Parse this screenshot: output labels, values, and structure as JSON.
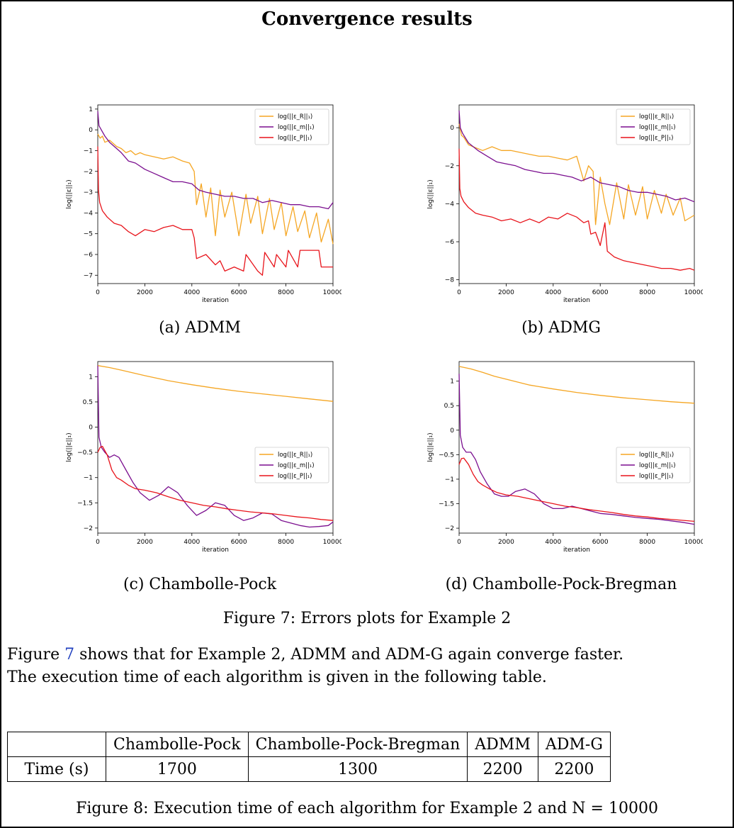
{
  "title": "Convergence results",
  "captions": [
    "(a) ADMM",
    "(b) ADMG",
    "(c) Chambolle-Pock",
    "(d) Chambolle-Pock-Bregman"
  ],
  "figure7_caption": "Figure 7: Errors plots for Example 2",
  "paragraph": {
    "ref": "7",
    "line1_pre": "Figure ",
    "line1_post": " shows that for Example 2, ADMM and ADM-G again converge faster.",
    "line2": "The execution time of each algorithm is given in the following table."
  },
  "table": {
    "headers": [
      "",
      "Chambolle-Pock",
      "Chambolle-Pock-Bregman",
      "ADMM",
      "ADM-G"
    ],
    "row": [
      "Time (s)",
      "1700",
      "1300",
      "2200",
      "2200"
    ]
  },
  "figure8_caption": "Figure 8: Execution time of each algorithm for Example 2 and N = 10000",
  "colors": {
    "orange": "#f5a623",
    "purple": "#7b0f8f",
    "red": "#e8141b"
  },
  "chart_data": [
    {
      "type": "line",
      "xlabel": "iteration",
      "ylabel": "log(||ε||₁)",
      "xlim": [
        0,
        10000
      ],
      "ylim": [
        -7.4,
        1.2
      ],
      "xticks": [
        0,
        2000,
        4000,
        6000,
        8000,
        10000
      ],
      "yticks": [
        1,
        0,
        -1,
        -2,
        -3,
        -4,
        -5,
        -6,
        -7
      ],
      "legend": "top-right",
      "series": [
        {
          "name": "log(||ε_R||₁)",
          "color": "orange",
          "x": [
            0,
            100,
            200,
            300,
            500,
            800,
            1000,
            1200,
            1400,
            1600,
            1800,
            2000,
            2400,
            2800,
            3200,
            3600,
            3900,
            4100,
            4200,
            4400,
            4600,
            4800,
            5000,
            5200,
            5400,
            5700,
            6000,
            6300,
            6500,
            6800,
            7000,
            7300,
            7500,
            7800,
            8000,
            8300,
            8500,
            8800,
            9000,
            9300,
            9500,
            9800,
            10000
          ],
          "y": [
            -0.2,
            -0.4,
            -0.3,
            -0.6,
            -0.5,
            -0.8,
            -0.9,
            -1.1,
            -1.0,
            -1.2,
            -1.1,
            -1.2,
            -1.3,
            -1.4,
            -1.3,
            -1.5,
            -1.6,
            -2.0,
            -3.6,
            -2.6,
            -4.2,
            -2.8,
            -5.1,
            -2.9,
            -4.2,
            -3.0,
            -5.1,
            -3.1,
            -4.5,
            -3.2,
            -5.0,
            -3.3,
            -4.8,
            -3.5,
            -5.1,
            -3.7,
            -4.9,
            -3.9,
            -5.2,
            -4.0,
            -5.4,
            -4.3,
            -5.5
          ]
        },
        {
          "name": "log(||ε_m||₁)",
          "color": "purple",
          "x": [
            0,
            50,
            150,
            300,
            500,
            800,
            1000,
            1300,
            1600,
            2000,
            2400,
            2800,
            3200,
            3600,
            4000,
            4300,
            4600,
            5000,
            5400,
            5800,
            6200,
            6600,
            7000,
            7400,
            7800,
            8200,
            8600,
            9000,
            9400,
            9800,
            10000
          ],
          "y": [
            0.9,
            0.2,
            0.0,
            -0.3,
            -0.6,
            -0.9,
            -1.1,
            -1.5,
            -1.6,
            -1.9,
            -2.1,
            -2.3,
            -2.5,
            -2.5,
            -2.6,
            -2.9,
            -3.0,
            -3.1,
            -3.2,
            -3.2,
            -3.3,
            -3.3,
            -3.5,
            -3.4,
            -3.5,
            -3.6,
            -3.6,
            -3.7,
            -3.7,
            -3.8,
            -3.5
          ]
        },
        {
          "name": "log(||ε_P||₁)",
          "color": "red",
          "x": [
            0,
            30,
            80,
            200,
            400,
            700,
            1000,
            1300,
            1600,
            2000,
            2400,
            2800,
            3200,
            3600,
            4000,
            4100,
            4200,
            4600,
            5000,
            5200,
            5400,
            5800,
            6200,
            6300,
            6800,
            7000,
            7100,
            7500,
            7600,
            8000,
            8100,
            8500,
            8600,
            9000,
            9400,
            9500,
            10000
          ],
          "y": [
            -0.8,
            -2.9,
            -3.5,
            -3.9,
            -4.2,
            -4.5,
            -4.6,
            -4.9,
            -5.1,
            -4.8,
            -4.9,
            -4.7,
            -4.6,
            -4.8,
            -4.8,
            -5.2,
            -6.2,
            -6.0,
            -6.5,
            -6.3,
            -6.8,
            -6.6,
            -6.8,
            -6.0,
            -6.8,
            -7.0,
            -5.9,
            -6.6,
            -6.0,
            -6.6,
            -5.8,
            -6.6,
            -5.8,
            -5.8,
            -5.8,
            -6.6,
            -6.6
          ]
        }
      ]
    },
    {
      "type": "line",
      "xlabel": "iteration",
      "ylabel": "log(||ε||₁)",
      "xlim": [
        0,
        10000
      ],
      "ylim": [
        -8.2,
        1.2
      ],
      "xticks": [
        0,
        2000,
        4000,
        6000,
        8000,
        10000
      ],
      "yticks": [
        0,
        -2,
        -4,
        -6,
        -8
      ],
      "legend": "top-right",
      "series": [
        {
          "name": "log(||ε_R||₁)",
          "color": "orange",
          "x": [
            0,
            100,
            200,
            400,
            600,
            800,
            1000,
            1400,
            1800,
            2200,
            2600,
            3000,
            3400,
            3800,
            4200,
            4600,
            5000,
            5300,
            5500,
            5700,
            5800,
            6000,
            6200,
            6400,
            6700,
            7000,
            7200,
            7500,
            7800,
            8000,
            8300,
            8600,
            8800,
            9100,
            9400,
            9600,
            10000
          ],
          "y": [
            0.2,
            -0.4,
            -0.5,
            -0.9,
            -1.0,
            -1.1,
            -1.2,
            -1.0,
            -1.2,
            -1.2,
            -1.3,
            -1.4,
            -1.5,
            -1.5,
            -1.6,
            -1.7,
            -1.5,
            -2.8,
            -2.0,
            -2.3,
            -5.1,
            -2.6,
            -4.0,
            -5.1,
            -2.9,
            -4.8,
            -3.0,
            -4.6,
            -3.1,
            -4.8,
            -3.3,
            -4.5,
            -3.5,
            -4.6,
            -3.7,
            -4.9,
            -4.6
          ]
        },
        {
          "name": "log(||ε_m||₁)",
          "color": "purple",
          "x": [
            0,
            50,
            150,
            400,
            800,
            1200,
            1600,
            2000,
            2400,
            2800,
            3200,
            3600,
            4000,
            4400,
            4800,
            5200,
            5600,
            6000,
            6400,
            6800,
            7200,
            7600,
            8000,
            8400,
            8800,
            9200,
            9600,
            10000
          ],
          "y": [
            0.9,
            0.0,
            -0.3,
            -0.8,
            -1.2,
            -1.5,
            -1.8,
            -1.9,
            -2.0,
            -2.2,
            -2.3,
            -2.4,
            -2.4,
            -2.5,
            -2.6,
            -2.8,
            -2.6,
            -2.9,
            -3.0,
            -3.1,
            -3.3,
            -3.4,
            -3.4,
            -3.5,
            -3.6,
            -3.8,
            -3.7,
            -3.9
          ]
        },
        {
          "name": "log(||ε_P||₁)",
          "color": "red",
          "x": [
            0,
            30,
            80,
            200,
            400,
            700,
            1000,
            1400,
            1800,
            2200,
            2600,
            3000,
            3400,
            3800,
            4200,
            4600,
            5000,
            5300,
            5500,
            5600,
            5800,
            6000,
            6200,
            6300,
            6600,
            7000,
            7400,
            7800,
            8200,
            8600,
            9000,
            9400,
            9800,
            10000
          ],
          "y": [
            -1.1,
            -3.2,
            -3.6,
            -3.9,
            -4.2,
            -4.5,
            -4.6,
            -4.7,
            -4.9,
            -4.8,
            -5.0,
            -4.8,
            -5.0,
            -4.7,
            -4.8,
            -4.5,
            -4.7,
            -5.0,
            -4.9,
            -5.6,
            -5.5,
            -6.2,
            -5.0,
            -6.5,
            -6.8,
            -7.0,
            -7.1,
            -7.2,
            -7.3,
            -7.4,
            -7.4,
            -7.5,
            -7.4,
            -7.5
          ]
        }
      ]
    },
    {
      "type": "line",
      "xlabel": "iteration",
      "ylabel": "log(||ε||₁)",
      "xlim": [
        0,
        10000
      ],
      "ylim": [
        -2.1,
        1.3
      ],
      "xticks": [
        0,
        2000,
        4000,
        6000,
        8000,
        10000
      ],
      "yticks": [
        1.0,
        0.5,
        0.0,
        -0.5,
        -1.0,
        -1.5,
        -2.0
      ],
      "legend": "center-right",
      "series": [
        {
          "name": "log(||ε_R||₁)",
          "color": "orange",
          "x": [
            0,
            500,
            1000,
            2000,
            3000,
            4000,
            5000,
            6000,
            7000,
            8000,
            9000,
            10000
          ],
          "y": [
            1.22,
            1.18,
            1.13,
            1.02,
            0.92,
            0.84,
            0.77,
            0.71,
            0.66,
            0.61,
            0.56,
            0.51
          ]
        },
        {
          "name": "log(||ε_m||₁)",
          "color": "purple",
          "x": [
            0,
            50,
            150,
            300,
            500,
            700,
            900,
            1200,
            1500,
            1800,
            2200,
            2600,
            3000,
            3400,
            3800,
            4200,
            4600,
            5000,
            5400,
            5800,
            6200,
            6600,
            7000,
            7400,
            7800,
            8200,
            8600,
            9000,
            9400,
            9800,
            10000
          ],
          "y": [
            1.22,
            -0.2,
            -0.4,
            -0.5,
            -0.6,
            -0.55,
            -0.6,
            -0.85,
            -1.1,
            -1.3,
            -1.45,
            -1.35,
            -1.18,
            -1.3,
            -1.55,
            -1.75,
            -1.65,
            -1.5,
            -1.55,
            -1.75,
            -1.85,
            -1.8,
            -1.7,
            -1.72,
            -1.85,
            -1.9,
            -1.95,
            -1.98,
            -1.97,
            -1.95,
            -1.88
          ]
        },
        {
          "name": "log(||ε_P||₁)",
          "color": "red",
          "x": [
            0,
            100,
            200,
            400,
            600,
            800,
            1000,
            1300,
            1600,
            2000,
            2500,
            3000,
            3500,
            4000,
            4500,
            5000,
            5500,
            6000,
            6500,
            7000,
            7500,
            8000,
            8500,
            9000,
            9500,
            10000
          ],
          "y": [
            -0.5,
            -0.4,
            -0.38,
            -0.55,
            -0.85,
            -1.0,
            -1.05,
            -1.15,
            -1.22,
            -1.25,
            -1.3,
            -1.38,
            -1.45,
            -1.5,
            -1.55,
            -1.58,
            -1.62,
            -1.65,
            -1.68,
            -1.7,
            -1.72,
            -1.75,
            -1.78,
            -1.8,
            -1.83,
            -1.85
          ]
        }
      ]
    },
    {
      "type": "line",
      "xlabel": "iteration",
      "ylabel": "log(||ε||₁)",
      "xlim": [
        0,
        10000
      ],
      "ylim": [
        -2.1,
        1.4
      ],
      "xticks": [
        0,
        2000,
        4000,
        6000,
        8000,
        10000
      ],
      "yticks": [
        1.0,
        0.5,
        0.0,
        -0.5,
        -1.0,
        -1.5,
        -2.0
      ],
      "legend": "center-right",
      "series": [
        {
          "name": "log(||ε_R||₁)",
          "color": "orange",
          "x": [
            0,
            500,
            1000,
            1500,
            2000,
            3000,
            4000,
            5000,
            6000,
            7000,
            8000,
            9000,
            10000
          ],
          "y": [
            1.3,
            1.25,
            1.18,
            1.1,
            1.04,
            0.92,
            0.84,
            0.77,
            0.71,
            0.66,
            0.62,
            0.58,
            0.55
          ]
        },
        {
          "name": "log(||ε_m||₁)",
          "color": "purple",
          "x": [
            0,
            50,
            150,
            300,
            500,
            700,
            900,
            1200,
            1500,
            1800,
            2100,
            2400,
            2800,
            3200,
            3600,
            4000,
            4400,
            4800,
            5200,
            5600,
            6000,
            6500,
            7000,
            7500,
            8000,
            8500,
            9000,
            9500,
            10000
          ],
          "y": [
            1.15,
            -0.1,
            -0.35,
            -0.45,
            -0.45,
            -0.6,
            -0.85,
            -1.1,
            -1.3,
            -1.35,
            -1.35,
            -1.25,
            -1.2,
            -1.3,
            -1.5,
            -1.6,
            -1.6,
            -1.55,
            -1.6,
            -1.65,
            -1.7,
            -1.72,
            -1.75,
            -1.78,
            -1.8,
            -1.82,
            -1.85,
            -1.88,
            -1.92
          ]
        },
        {
          "name": "log(||ε_P||₁)",
          "color": "red",
          "x": [
            0,
            100,
            200,
            400,
            600,
            800,
            1000,
            1300,
            1600,
            2000,
            2500,
            3000,
            3500,
            4000,
            4500,
            5000,
            5500,
            6000,
            6500,
            7000,
            7500,
            8000,
            8500,
            9000,
            9500,
            10000
          ],
          "y": [
            -0.7,
            -0.58,
            -0.57,
            -0.7,
            -0.9,
            -1.05,
            -1.12,
            -1.2,
            -1.27,
            -1.32,
            -1.35,
            -1.4,
            -1.45,
            -1.5,
            -1.55,
            -1.58,
            -1.62,
            -1.65,
            -1.68,
            -1.72,
            -1.75,
            -1.77,
            -1.8,
            -1.82,
            -1.84,
            -1.86
          ]
        }
      ]
    }
  ]
}
